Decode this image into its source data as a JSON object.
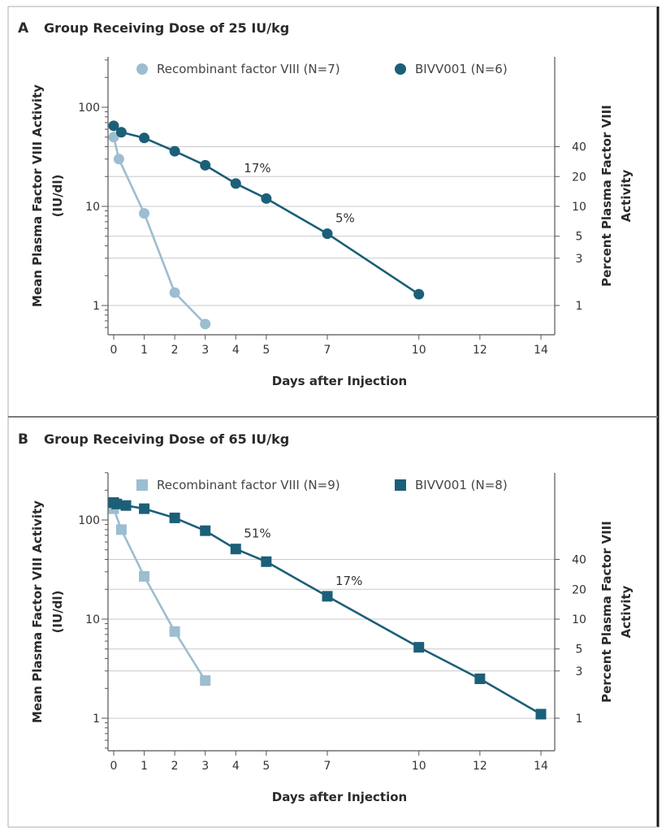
{
  "chart_data": [
    {
      "type": "line",
      "panel_letter": "A",
      "title": "Group Receiving Dose of 25 IU/kg",
      "xlabel": "Days after Injection",
      "ylabel_line1": "Mean Plasma Factor VIII Activity",
      "ylabel_line2": "(IU/dl)",
      "y2label_line1": "Percent Plasma Factor VIII",
      "y2label_line2": "Activity",
      "x_scale": "linear",
      "y_scale": "log",
      "xlim": [
        -0.2,
        14.5
      ],
      "ylim": [
        0.4,
        250
      ],
      "x_ticks": [
        0,
        1,
        2,
        3,
        4,
        5,
        7,
        10,
        12,
        14
      ],
      "x_tick_labels": [
        "0",
        "1",
        "2",
        "3",
        "4",
        "5",
        "7",
        "10",
        "12",
        "14"
      ],
      "y_ticks": [
        1,
        10,
        100
      ],
      "y_tick_labels": [
        "1",
        "10",
        "100"
      ],
      "y2_ticks": [
        1,
        3,
        5,
        10,
        20,
        40
      ],
      "y2_tick_labels": [
        "1",
        "3",
        "5",
        "10",
        "20",
        "40"
      ],
      "grid": "horizontal lines at right-axis ticks",
      "legend_position": "top",
      "series": [
        {
          "name": "Recombinant factor VIII (N=7)",
          "marker": "circle",
          "color": "#9dbdd0",
          "x": [
            0,
            0.17,
            1,
            2,
            3
          ],
          "y": [
            50,
            30,
            8.5,
            1.35,
            0.65
          ]
        },
        {
          "name": "BIVV001 (N=6)",
          "marker": "circle",
          "color": "#1c5f78",
          "x": [
            0,
            0.25,
            1,
            2,
            3,
            4,
            5,
            7,
            10
          ],
          "y": [
            65,
            56,
            49,
            36,
            26,
            17,
            12,
            5.3,
            1.3
          ]
        }
      ],
      "annotations": [
        {
          "text": "17%",
          "x": 4,
          "y": 17
        },
        {
          "text": "5%",
          "x": 7,
          "y": 5.3
        }
      ]
    },
    {
      "type": "line",
      "panel_letter": "B",
      "title": "Group Receiving Dose of 65 IU/kg",
      "xlabel": "Days after Injection",
      "ylabel_line1": "Mean Plasma Factor VIII Activity",
      "ylabel_line2": "(IU/dl)",
      "y2label_line1": "Percent Plasma Factor VIII",
      "y2label_line2": "Activity",
      "x_scale": "linear",
      "y_scale": "log",
      "xlim": [
        -0.2,
        14.5
      ],
      "ylim": [
        0.5,
        270
      ],
      "x_ticks": [
        0,
        1,
        2,
        3,
        4,
        5,
        7,
        10,
        12,
        14
      ],
      "x_tick_labels": [
        "0",
        "1",
        "2",
        "3",
        "4",
        "5",
        "7",
        "10",
        "12",
        "14"
      ],
      "y_ticks": [
        1,
        10,
        100
      ],
      "y_tick_labels": [
        "1",
        "10",
        "100"
      ],
      "y2_ticks": [
        1,
        3,
        5,
        10,
        20,
        40
      ],
      "y2_tick_labels": [
        "1",
        "3",
        "5",
        "10",
        "20",
        "40"
      ],
      "grid": "horizontal lines at right-axis ticks",
      "legend_position": "top",
      "series": [
        {
          "name": "Recombinant factor VIII (N=9)",
          "marker": "square",
          "color": "#9dbdd0",
          "x": [
            0,
            0.25,
            1,
            2,
            3
          ],
          "y": [
            130,
            80,
            27,
            7.5,
            2.4
          ]
        },
        {
          "name": "BIVV001 (N=8)",
          "marker": "square",
          "color": "#1c5f78",
          "x": [
            0,
            0.1,
            0.4,
            1,
            2,
            3,
            4,
            5,
            7,
            10,
            12,
            14
          ],
          "y": [
            150,
            145,
            140,
            130,
            105,
            78,
            51,
            38,
            17,
            5.2,
            2.5,
            1.1
          ]
        }
      ],
      "annotations": [
        {
          "text": "51%",
          "x": 4,
          "y": 51
        },
        {
          "text": "17%",
          "x": 7,
          "y": 17
        }
      ]
    }
  ]
}
